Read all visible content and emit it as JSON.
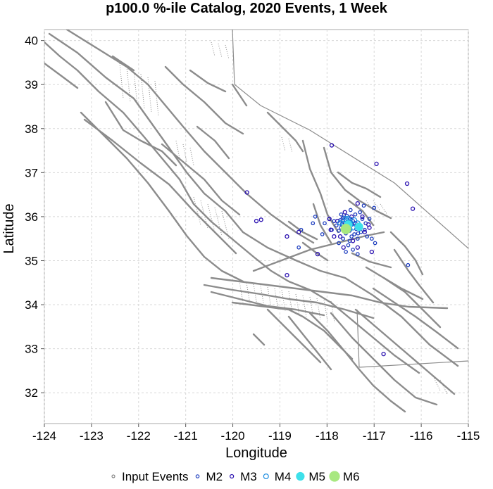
{
  "chart_data": {
    "type": "scatter",
    "title": "p100.0 %-ile Catalog, 2020 Events, 1 Week",
    "xlabel": "Longitude",
    "ylabel": "Latitude",
    "xlim": [
      -124,
      -115
    ],
    "ylim": [
      31.3,
      40.25
    ],
    "xticks": [
      -124,
      -123,
      -122,
      -121,
      -120,
      -119,
      -118,
      -117,
      -116,
      -115
    ],
    "yticks": [
      32,
      33,
      34,
      35,
      36,
      37,
      38,
      39,
      40
    ],
    "grid": true,
    "legend_position": "bottom",
    "legend": [
      {
        "key": "input",
        "label": "Input Events"
      },
      {
        "key": "m2",
        "label": "M2"
      },
      {
        "key": "m3",
        "label": "M3"
      },
      {
        "key": "m4",
        "label": "M4"
      },
      {
        "key": "m5",
        "label": "M5"
      },
      {
        "key": "m6",
        "label": "M6"
      }
    ],
    "series_style": {
      "input": {
        "color": "#888888",
        "filled": false
      },
      "m2": {
        "color": "#1f3fbf",
        "filled": false
      },
      "m3": {
        "color": "#2a10b0",
        "filled": false
      },
      "m4": {
        "color": "#1a8ce0",
        "filled": false
      },
      "m5": {
        "color": "#3ee0ea",
        "filled": true
      },
      "m6": {
        "color": "#a8e880",
        "filled": true
      }
    },
    "events": {
      "m2": [
        [
          -117.72,
          35.92
        ],
        [
          -117.65,
          35.98
        ],
        [
          -117.58,
          36.02
        ],
        [
          -117.5,
          35.95
        ],
        [
          -117.45,
          35.9
        ],
        [
          -117.62,
          35.85
        ],
        [
          -117.55,
          35.8
        ],
        [
          -117.7,
          35.75
        ],
        [
          -117.38,
          35.72
        ],
        [
          -117.3,
          35.78
        ],
        [
          -117.28,
          35.65
        ],
        [
          -117.42,
          35.6
        ],
        [
          -117.6,
          35.62
        ],
        [
          -117.75,
          35.68
        ],
        [
          -117.8,
          35.8
        ],
        [
          -117.85,
          35.9
        ],
        [
          -117.48,
          35.55
        ],
        [
          -117.35,
          35.5
        ],
        [
          -117.52,
          35.45
        ],
        [
          -117.66,
          35.5
        ],
        [
          -117.2,
          35.7
        ],
        [
          -117.18,
          35.85
        ],
        [
          -117.25,
          35.95
        ],
        [
          -117.9,
          35.7
        ],
        [
          -117.95,
          35.95
        ],
        [
          -117.4,
          36.05
        ],
        [
          -117.7,
          36.05
        ],
        [
          -117.3,
          36.1
        ],
        [
          -117.55,
          35.35
        ],
        [
          -117.45,
          35.25
        ],
        [
          -117.6,
          35.2
        ],
        [
          -118.05,
          35.85
        ],
        [
          -118.1,
          35.6
        ],
        [
          -117.15,
          35.55
        ],
        [
          -117.05,
          35.5
        ],
        [
          -117.1,
          35.95
        ],
        [
          -117.62,
          35.7
        ],
        [
          -117.57,
          35.88
        ],
        [
          -117.47,
          35.82
        ],
        [
          -117.67,
          35.96
        ],
        [
          -117.34,
          35.62
        ],
        [
          -117.52,
          35.68
        ],
        [
          -118.25,
          36.0
        ],
        [
          -118.3,
          35.85
        ],
        [
          -117.75,
          35.4
        ],
        [
          -117.35,
          35.15
        ],
        [
          -116.98,
          35.4
        ],
        [
          -117.0,
          36.2
        ],
        [
          -117.22,
          36.25
        ],
        [
          -116.28,
          34.9
        ],
        [
          -118.6,
          35.3
        ],
        [
          -118.55,
          35.7
        ],
        [
          -117.5,
          36.15
        ]
      ],
      "m3": [
        [
          -117.9,
          37.62
        ],
        [
          -116.3,
          36.75
        ],
        [
          -116.18,
          36.18
        ],
        [
          -119.7,
          36.55
        ],
        [
          -119.4,
          35.93
        ],
        [
          -119.5,
          35.9
        ],
        [
          -118.85,
          35.55
        ],
        [
          -118.6,
          35.65
        ],
        [
          -118.2,
          35.15
        ],
        [
          -118.85,
          34.67
        ],
        [
          -116.8,
          32.88
        ],
        [
          -116.95,
          37.2
        ],
        [
          -117.35,
          36.3
        ],
        [
          -117.95,
          35.95
        ],
        [
          -117.78,
          35.9
        ],
        [
          -117.62,
          36.1
        ],
        [
          -117.2,
          35.65
        ],
        [
          -117.1,
          35.75
        ],
        [
          -117.65,
          35.3
        ],
        [
          -117.35,
          35.3
        ],
        [
          -117.05,
          35.2
        ],
        [
          -117.45,
          35.45
        ],
        [
          -117.85,
          35.55
        ],
        [
          -117.92,
          35.7
        ],
        [
          -117.72,
          35.55
        ],
        [
          -117.25,
          36.0
        ],
        [
          -117.55,
          35.8
        ],
        [
          -117.4,
          35.85
        ],
        [
          -117.48,
          36.0
        ],
        [
          -117.68,
          35.82
        ],
        [
          -117.12,
          35.82
        ]
      ],
      "m4": [
        [
          -117.58,
          35.9
        ],
        [
          -117.66,
          35.84
        ],
        [
          -117.5,
          35.85
        ],
        [
          -117.45,
          35.75
        ],
        [
          -117.62,
          35.78
        ],
        [
          -117.72,
          35.86
        ],
        [
          -117.55,
          35.95
        ],
        [
          -117.42,
          35.92
        ],
        [
          -117.52,
          35.72
        ],
        [
          -117.6,
          35.95
        ],
        [
          -117.35,
          35.85
        ]
      ],
      "m5": [
        [
          -117.55,
          35.82
        ],
        [
          -117.32,
          35.77
        ]
      ],
      "m6": [
        [
          -117.6,
          35.72
        ]
      ]
    }
  }
}
